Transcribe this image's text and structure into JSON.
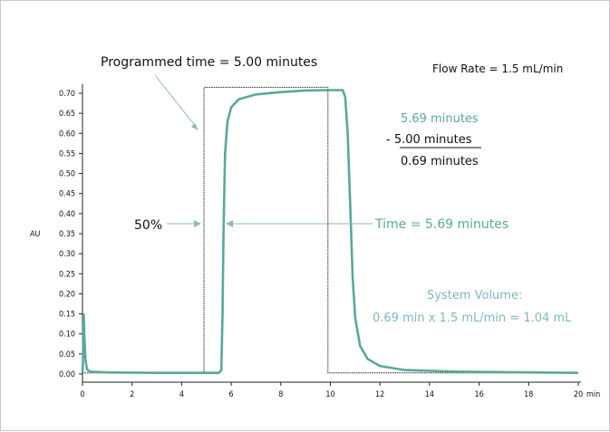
{
  "chart_data": {
    "type": "line",
    "x_unit": "min",
    "ylabel": "AU",
    "xlim": [
      0,
      20
    ],
    "ylim": [
      0,
      0.73
    ],
    "x_ticks": [
      0,
      2,
      4,
      6,
      8,
      10,
      12,
      14,
      16,
      18,
      20
    ],
    "x_unit_label": "min",
    "y_ticks": [
      "0.00",
      "0.05",
      "0.10",
      "0.15",
      "0.20",
      "0.25",
      "0.30",
      "0.35",
      "0.40",
      "0.45",
      "0.50",
      "0.55",
      "0.60",
      "0.65",
      "0.70"
    ],
    "series": [
      {
        "style": "measured",
        "color": "#5aa89b",
        "points": [
          [
            0.0,
            0.004
          ],
          [
            0.02,
            0.03
          ],
          [
            0.05,
            0.148
          ],
          [
            0.08,
            0.09
          ],
          [
            0.12,
            0.035
          ],
          [
            0.18,
            0.012
          ],
          [
            0.3,
            0.006
          ],
          [
            1.0,
            0.004
          ],
          [
            3.0,
            0.003
          ],
          [
            5.5,
            0.003
          ],
          [
            5.6,
            0.01
          ],
          [
            5.65,
            0.15
          ],
          [
            5.69,
            0.355
          ],
          [
            5.75,
            0.55
          ],
          [
            5.85,
            0.63
          ],
          [
            6.0,
            0.665
          ],
          [
            6.3,
            0.685
          ],
          [
            7.0,
            0.697
          ],
          [
            8.0,
            0.703
          ],
          [
            9.0,
            0.707
          ],
          [
            10.0,
            0.708
          ],
          [
            10.5,
            0.708
          ],
          [
            10.6,
            0.69
          ],
          [
            10.7,
            0.6
          ],
          [
            10.8,
            0.42
          ],
          [
            10.9,
            0.24
          ],
          [
            11.0,
            0.14
          ],
          [
            11.2,
            0.07
          ],
          [
            11.5,
            0.038
          ],
          [
            12.0,
            0.02
          ],
          [
            13.0,
            0.01
          ],
          [
            15.0,
            0.006
          ],
          [
            18.0,
            0.004
          ],
          [
            20.0,
            0.003
          ]
        ]
      },
      {
        "style": "programmed",
        "color": "#222222",
        "points": [
          [
            0.0,
            0.003
          ],
          [
            4.9,
            0.003
          ],
          [
            4.9,
            0.715
          ],
          [
            9.9,
            0.715
          ],
          [
            9.9,
            0.003
          ],
          [
            20.0,
            0.003
          ]
        ]
      }
    ]
  },
  "annotations": {
    "programmed_time": "Programmed time = 5.00 minutes",
    "flow_rate": "Flow Rate = 1.5 mL/min",
    "calc_line1": "5.69 minutes",
    "calc_line2": "- 5.00 minutes",
    "calc_line3": "0.69 minutes",
    "fifty_percent": "50%",
    "time_label": "Time = 5.69 minutes",
    "system_volume_title": "System Volume:",
    "system_volume_calc": "0.69 min x 1.5 mL/min = 1.04 mL"
  },
  "colors": {
    "teal": "#5aa89b",
    "light_blue": "#7fb8bb",
    "dark": "#111111"
  }
}
